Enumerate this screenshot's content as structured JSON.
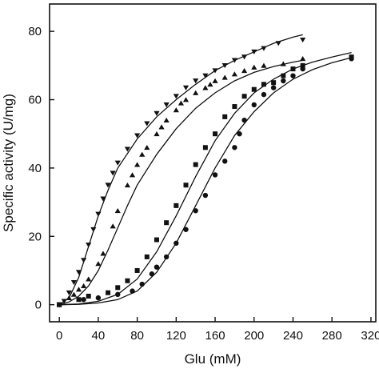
{
  "chart_data": {
    "type": "scatter",
    "title": "",
    "xlabel": "Glu (mM)",
    "ylabel": "Specific activity (U/mg)",
    "xlim": [
      -10,
      325
    ],
    "ylim": [
      -5,
      88
    ],
    "xticks": [
      0,
      40,
      80,
      120,
      160,
      200,
      240,
      280,
      320
    ],
    "yticks": [
      0,
      20,
      40,
      60,
      80
    ],
    "x_tick_labels": [
      "0",
      "40",
      "80",
      "120",
      "160",
      "200",
      "240",
      "280",
      "320"
    ],
    "y_tick_labels": [
      "0",
      "20",
      "40",
      "60",
      "80"
    ],
    "grid": false,
    "legend": "none",
    "series": [
      {
        "marker": "triangle-down",
        "color": "#111111",
        "points": [
          [
            0,
            0
          ],
          [
            5,
            1
          ],
          [
            10,
            3.5
          ],
          [
            15,
            6.5
          ],
          [
            20,
            9.5
          ],
          [
            25,
            13
          ],
          [
            30,
            17.5
          ],
          [
            35,
            22
          ],
          [
            40,
            26.5
          ],
          [
            45,
            31
          ],
          [
            50,
            35
          ],
          [
            55,
            38.5
          ],
          [
            60,
            41.5
          ],
          [
            70,
            45.5
          ],
          [
            80,
            49.5
          ],
          [
            90,
            53
          ],
          [
            100,
            56
          ],
          [
            110,
            58.5
          ],
          [
            120,
            61
          ],
          [
            130,
            63.5
          ],
          [
            140,
            65.5
          ],
          [
            150,
            67
          ],
          [
            160,
            68.5
          ],
          [
            170,
            70
          ],
          [
            180,
            71.5
          ],
          [
            190,
            72.5
          ],
          [
            200,
            74
          ],
          [
            210,
            75
          ],
          [
            225,
            76.5
          ],
          [
            250,
            77.5
          ]
        ],
        "fit": [
          [
            0,
            0
          ],
          [
            10,
            2
          ],
          [
            20,
            8
          ],
          [
            30,
            17
          ],
          [
            40,
            26
          ],
          [
            50,
            33.5
          ],
          [
            60,
            40
          ],
          [
            80,
            48.5
          ],
          [
            100,
            55
          ],
          [
            120,
            60
          ],
          [
            140,
            64.5
          ],
          [
            160,
            68.5
          ],
          [
            180,
            71.5
          ],
          [
            200,
            74
          ],
          [
            220,
            76.5
          ],
          [
            240,
            78.3
          ],
          [
            250,
            79
          ]
        ]
      },
      {
        "marker": "triangle-up",
        "color": "#111111",
        "points": [
          [
            0,
            0
          ],
          [
            10,
            2
          ],
          [
            15,
            3
          ],
          [
            20,
            4.5
          ],
          [
            25,
            5.5
          ],
          [
            30,
            7.5
          ],
          [
            40,
            12
          ],
          [
            45,
            15
          ],
          [
            55,
            23
          ],
          [
            60,
            27.5
          ],
          [
            70,
            35
          ],
          [
            75,
            38
          ],
          [
            80,
            41
          ],
          [
            85,
            44
          ],
          [
            90,
            46
          ],
          [
            100,
            50
          ],
          [
            105,
            52
          ],
          [
            110,
            54
          ],
          [
            120,
            57
          ],
          [
            125,
            59
          ],
          [
            130,
            60
          ],
          [
            140,
            62
          ],
          [
            150,
            63.5
          ],
          [
            155,
            64.5
          ],
          [
            160,
            65.5
          ],
          [
            170,
            66.5
          ],
          [
            180,
            67.5
          ],
          [
            190,
            68.5
          ],
          [
            200,
            69.5
          ],
          [
            210,
            70
          ],
          [
            230,
            70.5
          ],
          [
            250,
            72
          ]
        ],
        "fit": [
          [
            0,
            0
          ],
          [
            10,
            0.8
          ],
          [
            20,
            2.5
          ],
          [
            30,
            5.5
          ],
          [
            40,
            10
          ],
          [
            50,
            16
          ],
          [
            60,
            22.5
          ],
          [
            70,
            29
          ],
          [
            80,
            35
          ],
          [
            100,
            44
          ],
          [
            120,
            51.5
          ],
          [
            140,
            57.5
          ],
          [
            160,
            62
          ],
          [
            180,
            65.5
          ],
          [
            200,
            68
          ],
          [
            220,
            69.7
          ],
          [
            240,
            71
          ],
          [
            250,
            71.5
          ]
        ]
      },
      {
        "marker": "square",
        "color": "#111111",
        "points": [
          [
            0,
            0
          ],
          [
            20,
            1.5
          ],
          [
            30,
            2.5
          ],
          [
            50,
            3.5
          ],
          [
            60,
            5
          ],
          [
            70,
            7
          ],
          [
            80,
            10
          ],
          [
            90,
            14
          ],
          [
            100,
            19
          ],
          [
            110,
            24
          ],
          [
            120,
            29
          ],
          [
            130,
            35
          ],
          [
            140,
            41
          ],
          [
            150,
            46
          ],
          [
            160,
            50
          ],
          [
            170,
            55
          ],
          [
            180,
            58
          ],
          [
            190,
            61
          ],
          [
            200,
            63
          ],
          [
            210,
            64.5
          ],
          [
            220,
            65
          ],
          [
            230,
            67
          ],
          [
            240,
            69
          ],
          [
            250,
            70
          ],
          [
            300,
            72.5
          ]
        ],
        "fit": [
          [
            0,
            0
          ],
          [
            20,
            0.2
          ],
          [
            40,
            1
          ],
          [
            60,
            3
          ],
          [
            80,
            7.5
          ],
          [
            100,
            15.5
          ],
          [
            120,
            26
          ],
          [
            140,
            37.5
          ],
          [
            160,
            48
          ],
          [
            180,
            56
          ],
          [
            200,
            62
          ],
          [
            220,
            66
          ],
          [
            240,
            69
          ],
          [
            260,
            71
          ],
          [
            280,
            72.5
          ],
          [
            300,
            73.8
          ]
        ]
      },
      {
        "marker": "circle",
        "color": "#111111",
        "points": [
          [
            0,
            0
          ],
          [
            25,
            1.5
          ],
          [
            40,
            2
          ],
          [
            60,
            3
          ],
          [
            75,
            4
          ],
          [
            85,
            6
          ],
          [
            95,
            9
          ],
          [
            100,
            11
          ],
          [
            110,
            14
          ],
          [
            120,
            18
          ],
          [
            130,
            22
          ],
          [
            140,
            27.5
          ],
          [
            150,
            32
          ],
          [
            160,
            38
          ],
          [
            170,
            42
          ],
          [
            180,
            46
          ],
          [
            185,
            50
          ],
          [
            190,
            54
          ],
          [
            200,
            58.5
          ],
          [
            210,
            61.5
          ],
          [
            220,
            63.5
          ],
          [
            230,
            65.5
          ],
          [
            240,
            67
          ],
          [
            250,
            69
          ],
          [
            300,
            72
          ]
        ],
        "fit": [
          [
            0,
            0
          ],
          [
            20,
            0.1
          ],
          [
            40,
            0.5
          ],
          [
            60,
            1.5
          ],
          [
            80,
            4
          ],
          [
            100,
            9.5
          ],
          [
            120,
            18
          ],
          [
            140,
            29
          ],
          [
            160,
            40
          ],
          [
            180,
            49.5
          ],
          [
            200,
            56.5
          ],
          [
            220,
            62
          ],
          [
            240,
            66
          ],
          [
            260,
            68.8
          ],
          [
            280,
            70.8
          ],
          [
            300,
            72.3
          ]
        ]
      }
    ]
  }
}
